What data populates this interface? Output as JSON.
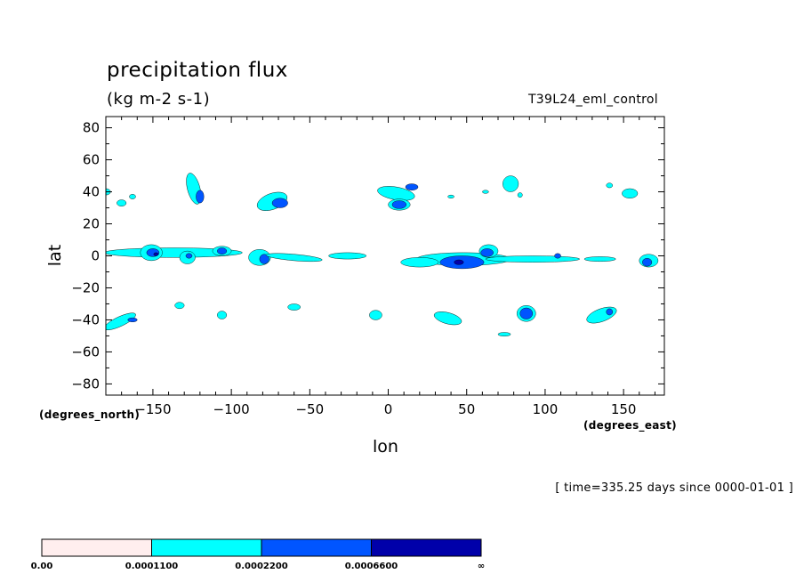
{
  "chart_data": {
    "type": "contour",
    "title": "precipitation flux",
    "units": "(kg m-2 s-1)",
    "run_name": "T39L24_eml_control",
    "xlabel": "lon",
    "xunits": "(degrees_east)",
    "ylabel": "lat",
    "yunits": "(degrees_north)",
    "xlim": [
      -180,
      176
    ],
    "ylim": [
      -87,
      87
    ],
    "xticks": [
      -150,
      -100,
      -50,
      0,
      50,
      100,
      150
    ],
    "yticks": [
      80,
      60,
      40,
      20,
      0,
      -20,
      -40,
      -60,
      -80
    ],
    "xtick_labels": [
      "−150",
      "−100",
      "−50",
      "0",
      "50",
      "100",
      "150"
    ],
    "ytick_labels": [
      "80",
      "60",
      "40",
      "20",
      "0",
      "−20",
      "−40",
      "−60",
      "−80"
    ],
    "timestamp": "[ time=335.25 days since 0000-01-01 ]",
    "levels": [
      {
        "label": "0.00",
        "color": "#ffeeee"
      },
      {
        "label": "0.0001100",
        "color": "#00ffff"
      },
      {
        "label": "0.0002200",
        "color": "#0055ff"
      },
      {
        "label": "0.0006600",
        "color": "#0000aa"
      },
      {
        "label": "∞"
      }
    ],
    "regions": [
      {
        "level": 1,
        "cx": -171,
        "cy": -41,
        "rx": 11,
        "ry": 3,
        "rot": -25
      },
      {
        "level": 2,
        "cx": -163,
        "cy": -40,
        "rx": 3,
        "ry": 1.3
      },
      {
        "level": 1,
        "cx": -180,
        "cy": 40,
        "rx": 3,
        "ry": 2
      },
      {
        "level": 1,
        "cx": -170,
        "cy": 33,
        "rx": 3,
        "ry": 2
      },
      {
        "level": 1,
        "cx": -163,
        "cy": 37,
        "rx": 2,
        "ry": 1.5
      },
      {
        "level": 1,
        "cx": -124,
        "cy": 42,
        "rx": 4,
        "ry": 10,
        "rot": -15
      },
      {
        "level": 2,
        "cx": -120,
        "cy": 37,
        "rx": 2.5,
        "ry": 4
      },
      {
        "level": 1,
        "cx": -74,
        "cy": 34,
        "rx": 10,
        "ry": 5,
        "rot": -20
      },
      {
        "level": 2,
        "cx": -69,
        "cy": 33,
        "rx": 5,
        "ry": 3
      },
      {
        "level": 1,
        "cx": 5,
        "cy": 39,
        "rx": 12,
        "ry": 4,
        "rot": 10
      },
      {
        "level": 2,
        "cx": 15,
        "cy": 43,
        "rx": 4,
        "ry": 2
      },
      {
        "level": 1,
        "cx": 7,
        "cy": 32,
        "rx": 7,
        "ry": 3.5
      },
      {
        "level": 2,
        "cx": 7,
        "cy": 32,
        "rx": 4.5,
        "ry": 2.5
      },
      {
        "level": 1,
        "cx": 78,
        "cy": 45,
        "rx": 5,
        "ry": 5
      },
      {
        "level": 1,
        "cx": 62,
        "cy": 40,
        "rx": 2,
        "ry": 1
      },
      {
        "level": 1,
        "cx": 84,
        "cy": 38,
        "rx": 1.5,
        "ry": 1.5
      },
      {
        "level": 1,
        "cx": 154,
        "cy": 39,
        "rx": 5,
        "ry": 3
      },
      {
        "level": 1,
        "cx": 141,
        "cy": 44,
        "rx": 2,
        "ry": 1.5
      },
      {
        "level": 1,
        "cx": 40,
        "cy": 37,
        "rx": 2,
        "ry": 1
      },
      {
        "level": 1,
        "cx": -137,
        "cy": 2,
        "rx": 44,
        "ry": 3
      },
      {
        "level": 1,
        "cx": -151,
        "cy": 2,
        "rx": 7,
        "ry": 5
      },
      {
        "level": 2,
        "cx": -150,
        "cy": 2,
        "rx": 4,
        "ry": 2.5
      },
      {
        "level": 3,
        "cx": -148,
        "cy": 1,
        "rx": 1.5,
        "ry": 1
      },
      {
        "level": 1,
        "cx": -128,
        "cy": -1,
        "rx": 5,
        "ry": 4
      },
      {
        "level": 2,
        "cx": -127,
        "cy": 0,
        "rx": 2,
        "ry": 1.5
      },
      {
        "level": 1,
        "cx": -106,
        "cy": 3,
        "rx": 6,
        "ry": 3
      },
      {
        "level": 2,
        "cx": -106,
        "cy": 3,
        "rx": 3,
        "ry": 2
      },
      {
        "level": 1,
        "cx": -82,
        "cy": -1,
        "rx": 7,
        "ry": 5
      },
      {
        "level": 2,
        "cx": -79,
        "cy": -2,
        "rx": 3,
        "ry": 3
      },
      {
        "level": 1,
        "cx": -60,
        "cy": -1,
        "rx": 18,
        "ry": 2,
        "rot": 5
      },
      {
        "level": 1,
        "cx": -26,
        "cy": 0,
        "rx": 12,
        "ry": 2
      },
      {
        "level": 1,
        "cx": 48,
        "cy": -2,
        "rx": 30,
        "ry": 4
      },
      {
        "level": 1,
        "cx": 20,
        "cy": -4,
        "rx": 12,
        "ry": 3
      },
      {
        "level": 2,
        "cx": 47,
        "cy": -4,
        "rx": 14,
        "ry": 4
      },
      {
        "level": 3,
        "cx": 45,
        "cy": -4,
        "rx": 3,
        "ry": 1.5
      },
      {
        "level": 1,
        "cx": 64,
        "cy": 3,
        "rx": 6,
        "ry": 4
      },
      {
        "level": 2,
        "cx": 63,
        "cy": 2,
        "rx": 4,
        "ry": 2.5
      },
      {
        "level": 1,
        "cx": 92,
        "cy": -2,
        "rx": 30,
        "ry": 2
      },
      {
        "level": 2,
        "cx": 108,
        "cy": 0,
        "rx": 2,
        "ry": 1.5
      },
      {
        "level": 1,
        "cx": 135,
        "cy": -2,
        "rx": 10,
        "ry": 1.5
      },
      {
        "level": 1,
        "cx": 166,
        "cy": -3,
        "rx": 6,
        "ry": 4
      },
      {
        "level": 2,
        "cx": 165,
        "cy": -4,
        "rx": 3,
        "ry": 2.5
      },
      {
        "level": 1,
        "cx": -133,
        "cy": -31,
        "rx": 3,
        "ry": 2
      },
      {
        "level": 1,
        "cx": -106,
        "cy": -37,
        "rx": 3,
        "ry": 2.5
      },
      {
        "level": 1,
        "cx": -60,
        "cy": -32,
        "rx": 4,
        "ry": 2
      },
      {
        "level": 1,
        "cx": -8,
        "cy": -37,
        "rx": 4,
        "ry": 3
      },
      {
        "level": 1,
        "cx": 38,
        "cy": -39,
        "rx": 9,
        "ry": 3.5,
        "rot": 15
      },
      {
        "level": 1,
        "cx": 88,
        "cy": -36,
        "rx": 6,
        "ry": 5
      },
      {
        "level": 2,
        "cx": 88,
        "cy": -36,
        "rx": 4,
        "ry": 3.5
      },
      {
        "level": 1,
        "cx": 136,
        "cy": -37,
        "rx": 10,
        "ry": 4,
        "rot": -20
      },
      {
        "level": 2,
        "cx": 141,
        "cy": -35,
        "rx": 2,
        "ry": 2
      },
      {
        "level": 1,
        "cx": 74,
        "cy": -49,
        "rx": 4,
        "ry": 1.2
      }
    ]
  }
}
